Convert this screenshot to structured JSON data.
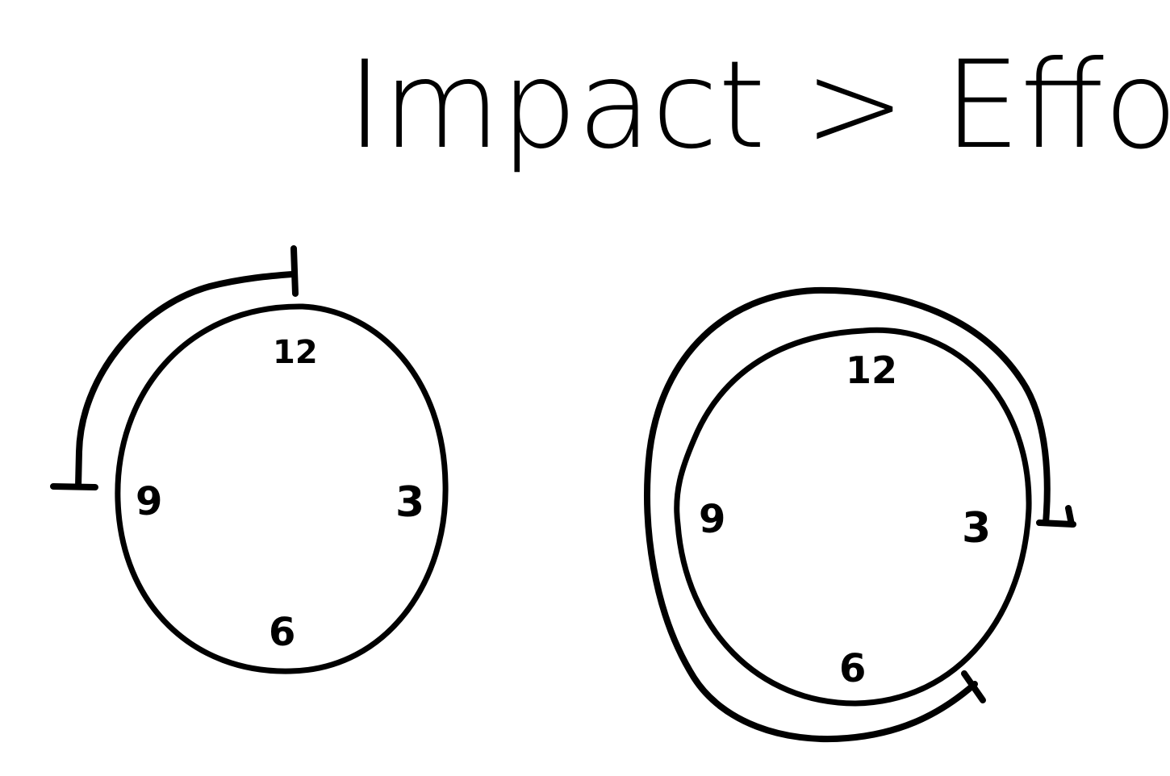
{
  "title": "Impact > Effort",
  "colors": {
    "ink": "#000000",
    "paper": "#ffffff"
  },
  "clocks": [
    {
      "id": "impact-clock",
      "numbers": [
        "12",
        "3",
        "6",
        "9"
      ],
      "arc": "9 to 12 (quarter turn)"
    },
    {
      "id": "effort-clock",
      "numbers": [
        "12",
        "3",
        "6",
        "9"
      ],
      "arc": "past 3 around to 6 (more than a full turn)"
    }
  ]
}
